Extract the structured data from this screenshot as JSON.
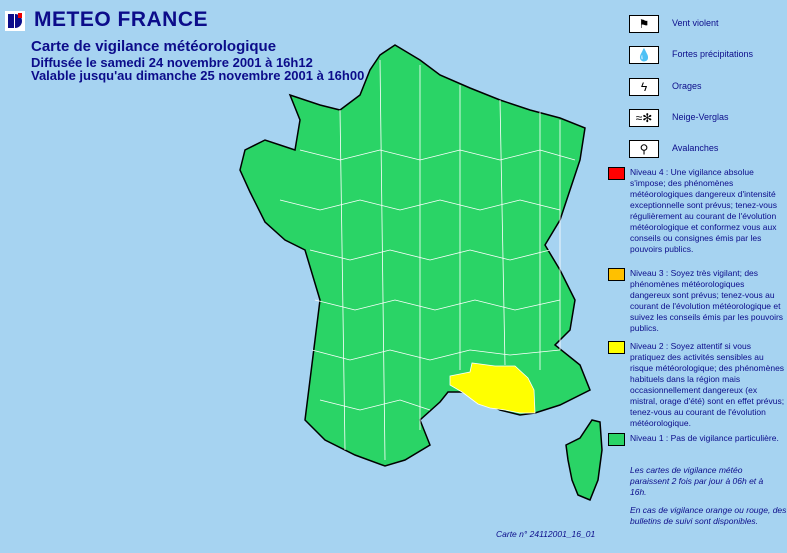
{
  "header": {
    "brand": "METEO FRANCE",
    "title": "Carte de vigilance météorologique",
    "issued": "Diffusée le samedi 24 novembre 2001 à 16h12",
    "valid": "Valable jusqu'au dimanche 25 novembre 2001 à 16h00"
  },
  "hazards": [
    {
      "icon": "wind-icon",
      "label": "Vent violent"
    },
    {
      "icon": "heavy-rain-icon",
      "label": "Fortes précipitations"
    },
    {
      "icon": "thunderstorm-icon",
      "label": "Orages"
    },
    {
      "icon": "snow-ice-icon",
      "label": "Neige-Verglas"
    },
    {
      "icon": "avalanche-icon",
      "label": "Avalanches"
    }
  ],
  "levels": [
    {
      "color": "#ff0000",
      "text": "Niveau 4 : Une vigilance absolue s'impose; des phénomènes météorologiques dangereux d'intensité exceptionnelle sont prévus; tenez-vous régulièrement au courant de l'évolution météorologique et conformez vous aux conseils ou consignes émis par les pouvoirs publics."
    },
    {
      "color": "#ffc000",
      "text": "Niveau 3 : Soyez très vigilant; des phénomènes météorologiques dangereux sont prévus; tenez-vous au courant de l'évolution météorologique et suivez les conseils émis par les pouvoirs publics."
    },
    {
      "color": "#ffff00",
      "text": "Niveau 2 : Soyez attentif si vous pratiquez des activités sensibles au risque météorologique; des phénomènes habituels dans la région mais occasionnellement dangereux (ex mistral, orage d'été) sont en effet prévus; tenez-vous au courant de l'évolution météorologique."
    },
    {
      "color": "#2ad466",
      "text": "Niveau 1 : Pas de vigilance particulière."
    }
  ],
  "notes": {
    "schedule": "Les cartes de vigilance météo paraissent 2 fois par jour à 06h et à 16h.",
    "followup": "En cas de vigilance orange ou rouge, des bulletins de suivi sont disponibles."
  },
  "map": {
    "default_level_color": "#2ad466",
    "yellow_area_color": "#ffff00"
  },
  "carte_id": "Carte n° 24112001_16_01"
}
